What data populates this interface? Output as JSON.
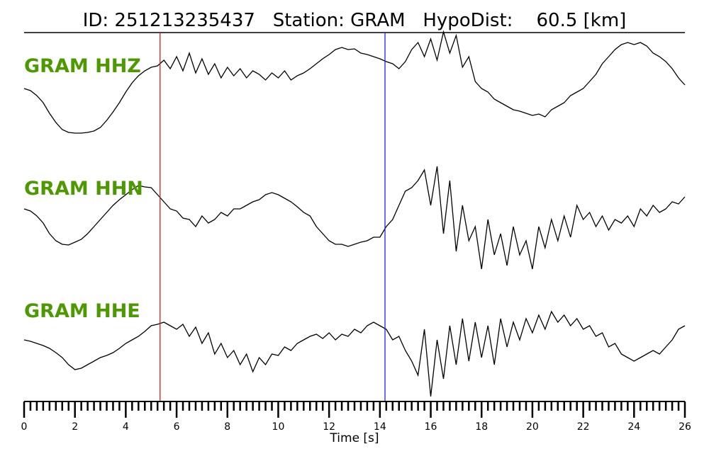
{
  "chart_data": {
    "type": "line",
    "title": "ID: 251213235437   Station: GRAM   HypoDist:    60.5 [km]",
    "xlabel": "Time [s]",
    "ylabel": "",
    "xlim": [
      0,
      26
    ],
    "x_ticks": [
      "0",
      "2",
      "4",
      "6",
      "8",
      "10",
      "12",
      "14",
      "16",
      "18",
      "20",
      "22",
      "24",
      "26"
    ],
    "minor_tick_step": 0.25,
    "grid": false,
    "label_color": "#4c9a00",
    "trace_color": "#000000",
    "markers": [
      {
        "name": "P",
        "time": 5.35,
        "color": "#e31a1c"
      },
      {
        "name": "S",
        "time": 14.2,
        "color": "#1f1fff"
      }
    ],
    "t0": 0,
    "dt": 0.25,
    "series": [
      {
        "name": "GRAM HHZ",
        "values": [
          0,
          -3,
          -10,
          -20,
          -35,
          -48,
          -58,
          -62,
          -63,
          -63,
          -62,
          -60,
          -55,
          -45,
          -33,
          -20,
          -5,
          8,
          18,
          25,
          30,
          32,
          40,
          28,
          45,
          25,
          50,
          22,
          42,
          20,
          35,
          15,
          30,
          18,
          28,
          15,
          25,
          20,
          12,
          22,
          15,
          25,
          12,
          18,
          22,
          28,
          35,
          42,
          48,
          55,
          58,
          55,
          56,
          50,
          48,
          45,
          42,
          38,
          35,
          28,
          38,
          55,
          65,
          45,
          70,
          40,
          80,
          50,
          75,
          30,
          45,
          10,
          0,
          -5,
          -15,
          -20,
          -25,
          -30,
          -32,
          -35,
          -38,
          -36,
          -40,
          -30,
          -25,
          -20,
          -10,
          -5,
          0,
          10,
          20,
          35,
          45,
          55,
          62,
          65,
          62,
          65,
          60,
          50,
          45,
          38,
          28,
          15,
          5
        ]
      },
      {
        "name": "GRAM HHN",
        "values": [
          5,
          2,
          -5,
          -15,
          -30,
          -40,
          -45,
          -46,
          -42,
          -38,
          -30,
          -20,
          -10,
          0,
          10,
          18,
          25,
          32,
          38,
          36,
          35,
          25,
          15,
          5,
          2,
          -8,
          -10,
          -20,
          -5,
          -15,
          -10,
          0,
          -5,
          5,
          5,
          10,
          15,
          18,
          25,
          28,
          25,
          20,
          15,
          8,
          0,
          -5,
          -20,
          -30,
          -40,
          -45,
          -45,
          -48,
          -45,
          -42,
          -40,
          -35,
          -35,
          -20,
          -10,
          10,
          30,
          35,
          45,
          60,
          10,
          65,
          -30,
          45,
          -55,
          10,
          -40,
          -20,
          -80,
          -10,
          -60,
          -30,
          -75,
          -20,
          -60,
          -40,
          -80,
          -20,
          -50,
          -10,
          -40,
          -5,
          -35,
          10,
          -10,
          0,
          -20,
          -5,
          -25,
          -10,
          -15,
          -5,
          -20,
          5,
          -5,
          10,
          0,
          5,
          15,
          12,
          22
        ]
      },
      {
        "name": "GRAM HHE",
        "values": [
          10,
          8,
          5,
          2,
          -2,
          -8,
          -15,
          -25,
          -32,
          -30,
          -25,
          -20,
          -15,
          -12,
          -8,
          -2,
          5,
          10,
          15,
          22,
          30,
          32,
          35,
          30,
          25,
          32,
          15,
          28,
          5,
          20,
          -10,
          5,
          -15,
          -5,
          -25,
          -10,
          -35,
          -15,
          -25,
          -10,
          -12,
          0,
          -5,
          5,
          10,
          15,
          18,
          12,
          20,
          10,
          18,
          15,
          25,
          20,
          30,
          35,
          30,
          25,
          10,
          15,
          -5,
          -20,
          -40,
          25,
          -70,
          10,
          -45,
          30,
          -25,
          40,
          -20,
          35,
          -15,
          30,
          -25,
          40,
          0,
          35,
          10,
          40,
          20,
          45,
          25,
          50,
          35,
          45,
          30,
          40,
          25,
          30,
          15,
          20,
          0,
          5,
          -10,
          -15,
          -20,
          -15,
          -10,
          -5,
          -10,
          0,
          10,
          25,
          30
        ]
      }
    ]
  }
}
